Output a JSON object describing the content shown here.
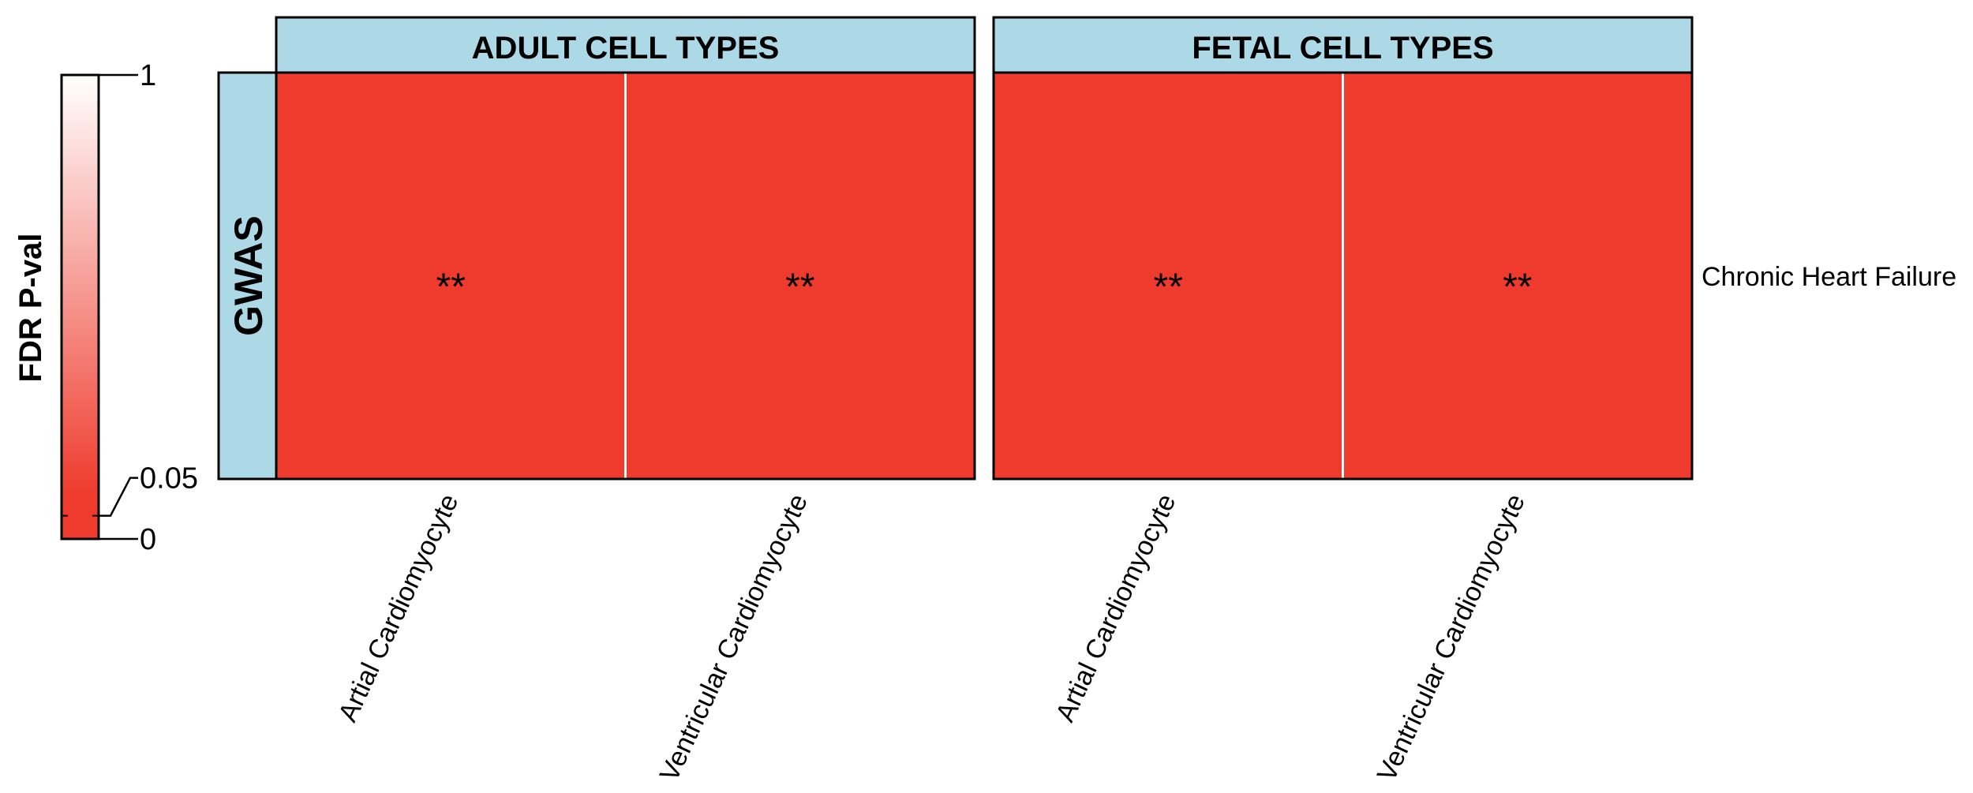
{
  "chart_data": {
    "type": "heatmap",
    "colorbar": {
      "title": "FDR P-val",
      "ticks": [
        {
          "value": 1,
          "label": "1"
        },
        {
          "value": 0.05,
          "label": "0.05"
        },
        {
          "value": 0,
          "label": "0"
        }
      ],
      "low_color": "#ee3b2d",
      "high_color": "#ffffff"
    },
    "row_group": "GWAS",
    "rows": [
      "Chronic Heart Failure"
    ],
    "panels": [
      {
        "title": "ADULT CELL TYPES",
        "columns": [
          "Artial Cardiomyocyte",
          "Ventricular Cardiomyocyte"
        ],
        "cells": [
          {
            "row": "Chronic Heart Failure",
            "value": 0.0,
            "annotation": "**"
          },
          {
            "row": "Chronic Heart Failure",
            "value": 0.0,
            "annotation": "**"
          }
        ]
      },
      {
        "title": "FETAL CELL TYPES",
        "columns": [
          "Artial Cardiomyocyte",
          "Ventricular Cardiomyocyte"
        ],
        "cells": [
          {
            "row": "Chronic Heart Failure",
            "value": 0.0,
            "annotation": "**"
          },
          {
            "row": "Chronic Heart Failure",
            "value": 0.0,
            "annotation": "**"
          }
        ]
      }
    ],
    "strip_color": "#add8e6",
    "border_color": "#000000"
  }
}
